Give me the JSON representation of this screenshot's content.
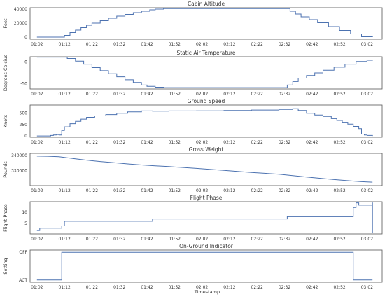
{
  "figure": {
    "xlabel": "Timestamp",
    "x_ticks": [
      "01:02",
      "01:12",
      "01:22",
      "01:32",
      "01:42",
      "01:52",
      "02:02",
      "02:12",
      "02:22",
      "02:32",
      "02:42",
      "02:52",
      "03:02"
    ]
  },
  "chart_data": [
    {
      "type": "line",
      "title": "Cabin Altitude",
      "ylabel": "Feet",
      "xlim": [
        59.5,
        187.5
      ],
      "ylim": [
        -3000,
        42000
      ],
      "yticks": [
        {
          "v": 0,
          "label": "0"
        },
        {
          "v": 20000,
          "label": "20000"
        },
        {
          "v": 40000,
          "label": "40000"
        }
      ],
      "step": true,
      "series": [
        {
          "x": [
            62,
            71,
            72,
            74,
            76,
            78,
            80,
            82,
            85,
            88,
            91,
            94,
            97,
            100,
            103,
            105,
            108,
            152,
            154,
            156,
            158,
            161,
            164,
            168,
            172,
            176,
            180,
            184
          ],
          "y": [
            0,
            0,
            2500,
            6500,
            10000,
            13500,
            17000,
            20000,
            23500,
            27000,
            30000,
            32500,
            35000,
            37000,
            39000,
            40000,
            40800,
            40800,
            37000,
            33000,
            29000,
            25000,
            20500,
            15000,
            9500,
            4500,
            500,
            0
          ]
        }
      ]
    },
    {
      "type": "line",
      "title": "Static Air Temperature",
      "ylabel": "Degrees Celcius",
      "xlim": [
        59.5,
        187.5
      ],
      "ylim": [
        -62,
        12
      ],
      "yticks": [
        {
          "v": 0,
          "label": "0"
        },
        {
          "v": -50,
          "label": "-50"
        }
      ],
      "step": true,
      "series": [
        {
          "x": [
            62,
            71,
            73,
            76,
            79,
            82,
            85,
            88,
            91,
            94,
            97,
            100,
            102,
            105,
            108,
            152,
            153,
            155,
            157,
            160,
            163,
            166,
            170,
            174,
            178,
            182,
            184
          ],
          "y": [
            11,
            11,
            8,
            2,
            -5,
            -13,
            -20,
            -27,
            -34,
            -41,
            -47,
            -53,
            -56,
            -58,
            -59,
            -59,
            -53,
            -45,
            -37,
            -31,
            -25,
            -19,
            -12,
            -5,
            1,
            4,
            5
          ]
        }
      ]
    },
    {
      "type": "line",
      "title": "Ground Speed",
      "ylabel": "Knots",
      "xlim": [
        59.5,
        187.5
      ],
      "ylim": [
        -30,
        680
      ],
      "yticks": [
        {
          "v": 0,
          "label": "0"
        },
        {
          "v": 250,
          "label": "250"
        },
        {
          "v": 500,
          "label": "500"
        }
      ],
      "step": true,
      "series": [
        {
          "x": [
            62,
            67,
            68,
            69,
            70,
            71,
            72,
            74,
            76,
            78,
            80,
            83,
            87,
            91,
            95,
            100,
            104,
            110,
            120,
            130,
            140,
            150,
            155,
            157,
            160,
            163,
            166,
            169,
            171,
            173,
            175,
            177,
            179,
            180,
            181,
            182,
            184
          ],
          "y": [
            0,
            10,
            20,
            30,
            20,
            120,
            200,
            270,
            320,
            370,
            410,
            440,
            470,
            500,
            530,
            550,
            545,
            550,
            552,
            560,
            570,
            585,
            600,
            560,
            500,
            460,
            430,
            380,
            340,
            300,
            260,
            210,
            160,
            40,
            20,
            10,
            0
          ]
        }
      ]
    },
    {
      "type": "line",
      "title": "Gross Weight",
      "ylabel": "Pounds",
      "xlim": [
        59.5,
        187.5
      ],
      "ylim": [
        320000,
        341500
      ],
      "yticks": [
        {
          "v": 330000,
          "label": "330000"
        },
        {
          "v": 340000,
          "label": "340000"
        }
      ],
      "step": false,
      "series": [
        {
          "x": [
            62,
            66,
            70,
            72,
            76,
            80,
            85,
            90,
            95,
            100,
            105,
            110,
            120,
            130,
            140,
            150,
            160,
            170,
            180,
            184
          ],
          "y": [
            339700,
            339600,
            339300,
            338800,
            337900,
            337000,
            336100,
            335300,
            334500,
            333800,
            333200,
            332700,
            331500,
            330200,
            328800,
            327600,
            325700,
            324000,
            322600,
            322300
          ]
        }
      ]
    },
    {
      "type": "line",
      "title": "Flight Phase",
      "ylabel": "Flight Phase",
      "xlim": [
        59.5,
        187.5
      ],
      "ylim": [
        0.5,
        14.5
      ],
      "yticks": [
        {
          "v": 5,
          "label": "5"
        },
        {
          "v": 10,
          "label": "10"
        }
      ],
      "step": true,
      "series": [
        {
          "x": [
            62,
            63,
            70,
            71,
            72,
            103,
            104,
            152,
            153,
            176,
            177,
            178,
            179,
            183,
            183.8,
            184
          ],
          "y": [
            2,
            3,
            3,
            4,
            6,
            6,
            7,
            7,
            8,
            8,
            12,
            14,
            13,
            13,
            14,
            1
          ]
        }
      ]
    },
    {
      "type": "line",
      "title": "On-Ground Indicator",
      "ylabel": "Setting",
      "xlim": [
        59.5,
        187.5
      ],
      "ylim": [
        -0.08,
        1.08
      ],
      "yticks": [
        {
          "v": 0,
          "label": "ACT"
        },
        {
          "v": 1,
          "label": "OFF"
        }
      ],
      "step": true,
      "series": [
        {
          "x": [
            62,
            71,
            71,
            177,
            177,
            184
          ],
          "y": [
            0,
            0,
            1,
            1,
            0,
            0
          ]
        }
      ]
    }
  ]
}
